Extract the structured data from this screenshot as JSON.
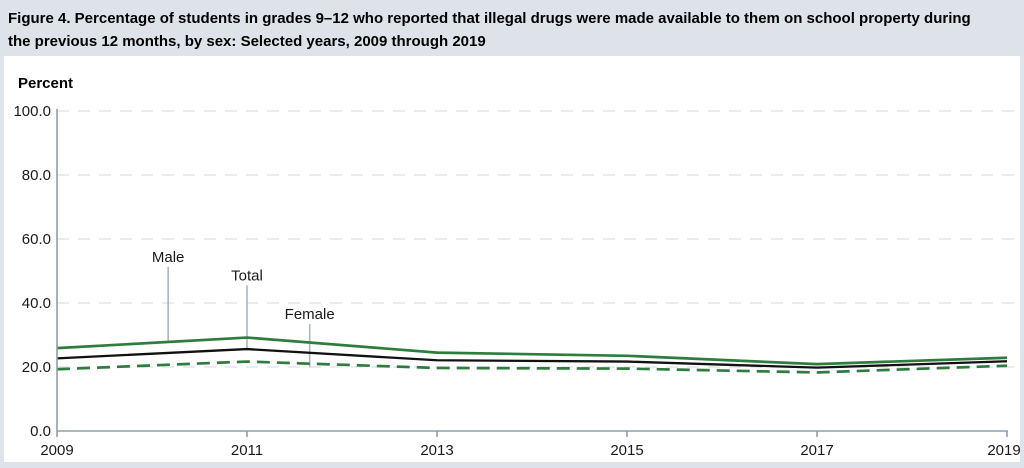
{
  "header": {
    "line1": "Figure 4. Percentage of students in grades 9–12 who reported that illegal drugs were made available to them on school property during",
    "line2": "the previous 12 months, by sex: Selected years, 2009 through 2019"
  },
  "chart_data": {
    "type": "line",
    "title": "Figure 4. Percentage of students in grades 9–12 who reported that illegal drugs were made available to them on school property during the previous 12 months, by sex: Selected years, 2009 through 2019",
    "ylabel": "Percent",
    "xlabel": "",
    "x": [
      2009,
      2011,
      2013,
      2015,
      2017,
      2019
    ],
    "xtick_labels": [
      "2009",
      "2011",
      "2013",
      "2015",
      "2017",
      "2019"
    ],
    "yticks": [
      100,
      80,
      60,
      40,
      20,
      0
    ],
    "ytick_labels": [
      "100.0",
      "80.0",
      "60.0",
      "40.0",
      "20.0",
      "0.0"
    ],
    "ylim": [
      0,
      100
    ],
    "xlim": [
      2009,
      2019
    ],
    "grid": "horizontal-dashed",
    "legend_position": "inline-callouts",
    "series": [
      {
        "name": "Male",
        "style": "solid",
        "color": "#2e7d3e",
        "values": [
          25.9,
          29.2,
          24.5,
          23.5,
          20.9,
          22.9
        ]
      },
      {
        "name": "Total",
        "style": "solid",
        "color": "#111111",
        "values": [
          22.7,
          25.6,
          22.1,
          21.7,
          19.8,
          21.8
        ]
      },
      {
        "name": "Female",
        "style": "dashed",
        "color": "#2e7d3e",
        "values": [
          19.3,
          21.7,
          19.7,
          19.5,
          18.3,
          20.4
        ]
      }
    ],
    "annotations": [
      {
        "label": "Male",
        "year": 2010.17,
        "line_top": 51.3,
        "line_bottom": 27.9
      },
      {
        "label": "Total",
        "year": 2011.0,
        "line_top": 45.5,
        "line_bottom": 25.5
      },
      {
        "label": "Female",
        "year": 2011.66,
        "line_top": 33.4,
        "line_bottom": 19.9
      }
    ],
    "colors": {
      "axis": "#8ba0ae",
      "callout": "#a7b7c3",
      "grid": "#e2e5e8",
      "text": "#1a1a1a",
      "panel_bg": "#ffffff",
      "canvas_bg": "#dde3e9"
    }
  }
}
